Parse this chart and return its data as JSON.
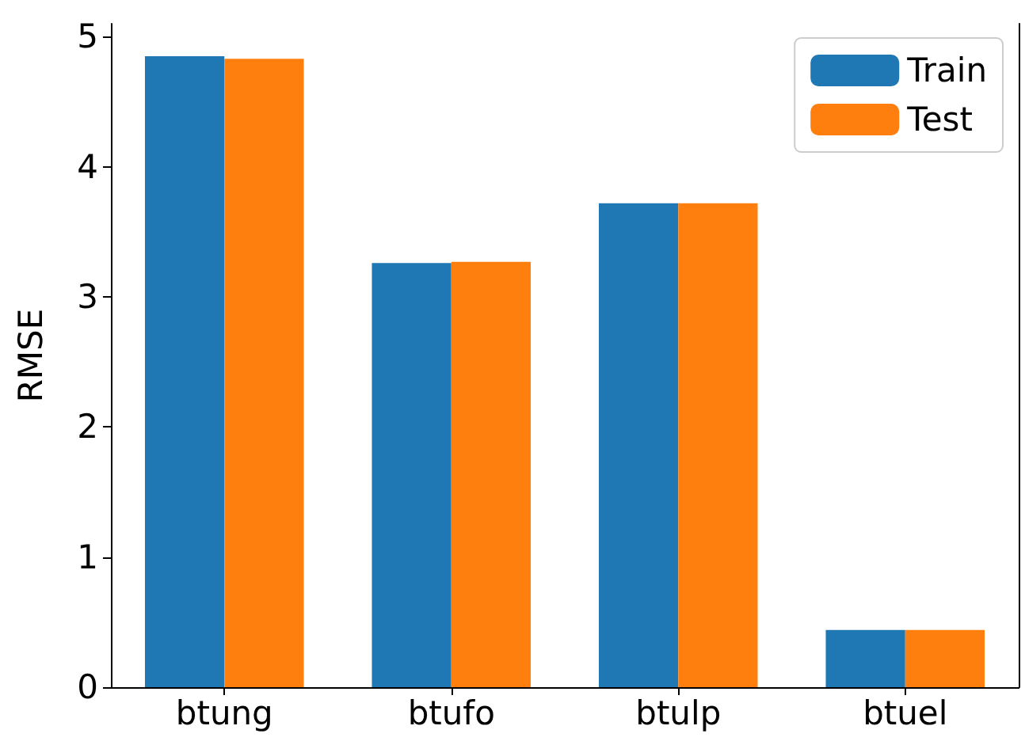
{
  "chart_data": {
    "type": "bar",
    "ylabel": "RMSE",
    "categories": [
      "btung",
      "btufo",
      "btulp",
      "btuel"
    ],
    "series": [
      {
        "name": "Train",
        "color": "#1f77b4",
        "values": [
          4.85,
          3.26,
          3.72,
          0.44
        ]
      },
      {
        "name": "Test",
        "color": "#ff7f0e",
        "values": [
          4.83,
          3.27,
          3.72,
          0.44
        ]
      }
    ],
    "ylim": [
      0,
      5.1
    ],
    "yticks": [
      0,
      1,
      2,
      3,
      4,
      5
    ],
    "grid": false,
    "legend": "top right"
  }
}
